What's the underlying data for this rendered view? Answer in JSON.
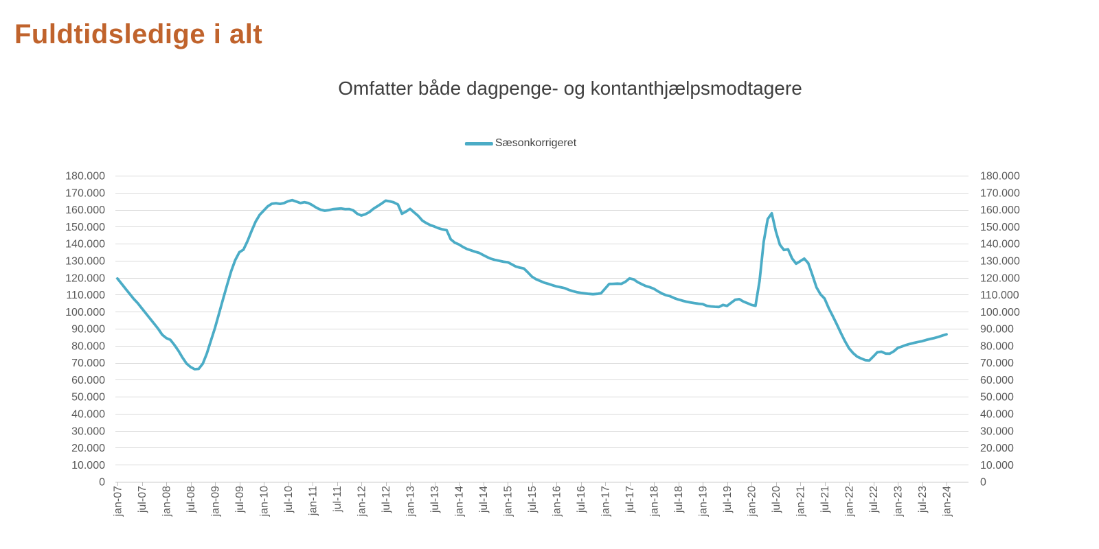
{
  "page": {
    "title": "Fuldtidsledige i alt",
    "title_color": "#C0632C",
    "background_color": "#FFFFFF"
  },
  "chart": {
    "subtitle": "Omfatter både dagpenge- og kontanthjælpsmodtagere",
    "legend": {
      "label": "Sæsonkorrigeret",
      "swatch_color": "#4BACC6"
    }
  },
  "chart_data": {
    "type": "line",
    "title": "Omfatter både dagpenge- og kontanthjælpsmodtagere",
    "legend_entries": [
      "Sæsonkorrigeret"
    ],
    "legend_position": "top-center",
    "grid": "horizontal",
    "dual_y_axis": true,
    "ylim": [
      0,
      180000
    ],
    "y_tick_step": 10000,
    "y_tick_labels": [
      "0",
      "10.000",
      "20.000",
      "30.000",
      "40.000",
      "50.000",
      "60.000",
      "70.000",
      "80.000",
      "90.000",
      "100.000",
      "110.000",
      "120.000",
      "130.000",
      "140.000",
      "150.000",
      "160.000",
      "170.000",
      "180.000"
    ],
    "x_frequency": "monthly",
    "x_first": "jan-07",
    "x_last": "jan-24",
    "x_tick_every_n_months": 6,
    "x_tick_labels": [
      "jan-07",
      "jul-07",
      "jan-08",
      "jul-08",
      "jan-09",
      "jul-09",
      "jan-10",
      "jul-10",
      "jan-11",
      "jul-11",
      "jan-12",
      "jul-12",
      "jan-13",
      "jul-13",
      "jan-14",
      "jul-14",
      "jan-15",
      "jul-15",
      "jan-16",
      "jul-16",
      "jan-17",
      "jul-17",
      "jan-18",
      "jul-18",
      "jan-19",
      "jul-19",
      "jan-20",
      "jul-20",
      "jan-21",
      "jul-21",
      "jan-22",
      "jul-22",
      "jan-23",
      "jul-23",
      "jan-24"
    ],
    "colors": {
      "grid": "#D9D9D9",
      "axis": "#BFBFBF",
      "tick_label": "#595959"
    },
    "series": [
      {
        "name": "Sæsonkorrigeret",
        "color": "#4BACC6",
        "unit": "fuldtidsledige personer",
        "values": [
          119500,
          116500,
          113500,
          110500,
          107500,
          105000,
          102000,
          99000,
          96000,
          93000,
          90000,
          86500,
          84500,
          83500,
          80500,
          77000,
          73000,
          69500,
          67500,
          66200,
          66400,
          69500,
          75500,
          83000,
          90500,
          99000,
          107500,
          116000,
          124000,
          130500,
          135000,
          136500,
          141500,
          147500,
          153000,
          157000,
          159500,
          162000,
          163500,
          163800,
          163400,
          163900,
          165000,
          165600,
          164800,
          163900,
          164400,
          163900,
          162600,
          161100,
          160000,
          159400,
          159700,
          160300,
          160500,
          160700,
          160300,
          160400,
          159600,
          157600,
          156600,
          157300,
          158600,
          160600,
          162100,
          163600,
          165300,
          164900,
          164300,
          163100,
          157600,
          158900,
          160500,
          158400,
          156400,
          153600,
          152100,
          150900,
          150100,
          149100,
          148400,
          147900,
          142600,
          140600,
          139600,
          138100,
          136900,
          136100,
          135300,
          134600,
          133300,
          132100,
          131100,
          130400,
          129900,
          129400,
          129100,
          127900,
          126600,
          125900,
          125400,
          123100,
          120600,
          119100,
          118100,
          117100,
          116400,
          115600,
          114900,
          114400,
          113900,
          112900,
          112100,
          111500,
          111100,
          110800,
          110500,
          110300,
          110500,
          110900,
          113600,
          116300,
          116400,
          116500,
          116400,
          117600,
          119600,
          119000,
          117400,
          116200,
          115100,
          114400,
          113500,
          112000,
          110700,
          109700,
          109100,
          108000,
          107200,
          106500,
          105900,
          105400,
          105000,
          104700,
          104500,
          103500,
          103100,
          102900,
          102800,
          104000,
          103400,
          105200,
          107000,
          107400,
          106000,
          105000,
          104000,
          103500,
          118000,
          141000,
          154500,
          157900,
          147300,
          139400,
          136300,
          136700,
          131300,
          128200,
          129700,
          131200,
          128500,
          121500,
          114300,
          110200,
          107700,
          102200,
          97500,
          92600,
          87500,
          82700,
          78500,
          75700,
          73600,
          72500,
          71500,
          71300,
          73700,
          76200,
          76500,
          75400,
          75300,
          76700,
          78700,
          79500,
          80400,
          81100,
          81700,
          82200,
          82700,
          83400,
          84000,
          84500,
          85200,
          86000,
          86700
        ]
      }
    ]
  }
}
